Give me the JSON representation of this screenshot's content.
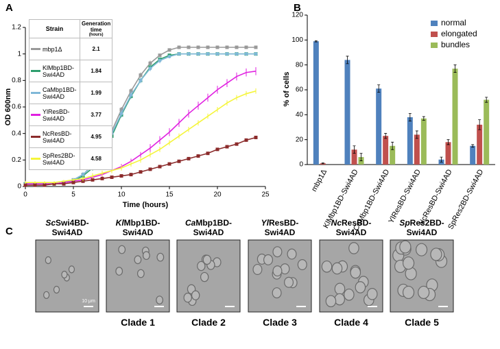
{
  "chart_data": [
    {
      "type": "line",
      "panel_label": "A",
      "xlabel": "Time (hours)",
      "ylabel": "OD 600nm",
      "x": [
        0,
        1,
        2,
        3,
        4,
        5,
        6,
        7,
        8,
        9,
        10,
        11,
        12,
        13,
        14,
        15,
        16,
        17,
        18,
        19,
        20,
        21,
        22,
        23,
        24
      ],
      "xlim": [
        0,
        25
      ],
      "xticks": [
        0,
        5,
        10,
        15,
        20,
        25
      ],
      "ylim": [
        0,
        1.2
      ],
      "yticks": [
        0,
        0.2,
        0.4,
        0.6,
        0.8,
        1,
        1.2
      ],
      "legend_header": [
        "Strain",
        "Generation time",
        "(hours)"
      ],
      "generation_times": [
        2.1,
        1.84,
        1.99,
        3.77,
        4.95,
        4.58
      ],
      "series": [
        {
          "name": "mbp1Δ",
          "color": "#999999",
          "marker": "square",
          "values": [
            0.02,
            0.02,
            0.02,
            0.02,
            0.03,
            0.05,
            0.09,
            0.16,
            0.27,
            0.42,
            0.58,
            0.72,
            0.84,
            0.93,
            0.99,
            1.03,
            1.05,
            1.05,
            1.05,
            1.05,
            1.05,
            1.05,
            1.05,
            1.05,
            1.05
          ],
          "errors": [
            0.005,
            0.005,
            0.005,
            0.005,
            0.01,
            0.01,
            0.01,
            0.02,
            0.02,
            0.02,
            0.02,
            0.02,
            0.02,
            0.02,
            0.01,
            0.01,
            0.01,
            0.01,
            0.01,
            0.01,
            0.01,
            0.01,
            0.01,
            0.01,
            0.01
          ]
        },
        {
          "name": "KlMbp1BD-Swi4AD",
          "color": "#2e9e6e",
          "marker": "square",
          "values": [
            0.02,
            0.02,
            0.02,
            0.02,
            0.03,
            0.04,
            0.08,
            0.14,
            0.24,
            0.38,
            0.54,
            0.68,
            0.8,
            0.9,
            0.96,
            0.99,
            1.0,
            1.0,
            1.0,
            1.0,
            1.0,
            1.0,
            1.0,
            1.0,
            1.0
          ],
          "errors": [
            0.005,
            0.005,
            0.005,
            0.005,
            0.01,
            0.01,
            0.01,
            0.02,
            0.02,
            0.02,
            0.02,
            0.02,
            0.02,
            0.02,
            0.01,
            0.01,
            0.01,
            0.01,
            0.01,
            0.01,
            0.01,
            0.01,
            0.01,
            0.01,
            0.01
          ]
        },
        {
          "name": "CaMbp1BD-Swi4AD",
          "color": "#7fb8d8",
          "marker": "circle",
          "values": [
            0.02,
            0.02,
            0.02,
            0.02,
            0.03,
            0.05,
            0.09,
            0.16,
            0.26,
            0.4,
            0.55,
            0.69,
            0.8,
            0.89,
            0.95,
            0.98,
            1.0,
            1.0,
            1.0,
            1.0,
            1.0,
            1.0,
            1.0,
            1.0,
            1.0
          ],
          "errors": [
            0.005,
            0.005,
            0.005,
            0.005,
            0.01,
            0.01,
            0.02,
            0.02,
            0.03,
            0.03,
            0.03,
            0.03,
            0.02,
            0.02,
            0.02,
            0.01,
            0.01,
            0.01,
            0.01,
            0.01,
            0.01,
            0.01,
            0.01,
            0.01,
            0.01
          ]
        },
        {
          "name": "YlResBD-Swi4AD",
          "color": "#e020e0",
          "marker": "none",
          "values": [
            0.02,
            0.02,
            0.02,
            0.02,
            0.03,
            0.04,
            0.05,
            0.07,
            0.09,
            0.12,
            0.15,
            0.19,
            0.24,
            0.29,
            0.35,
            0.41,
            0.48,
            0.55,
            0.61,
            0.67,
            0.73,
            0.78,
            0.83,
            0.86,
            0.87
          ],
          "errors": [
            0.01,
            0.01,
            0.01,
            0.01,
            0.01,
            0.01,
            0.01,
            0.02,
            0.02,
            0.02,
            0.02,
            0.02,
            0.02,
            0.03,
            0.03,
            0.03,
            0.03,
            0.03,
            0.03,
            0.03,
            0.03,
            0.03,
            0.03,
            0.03,
            0.03
          ]
        },
        {
          "name": "NcResBD-Swi4AD",
          "color": "#8b2b2b",
          "marker": "square",
          "values": [
            0.01,
            0.01,
            0.01,
            0.02,
            0.02,
            0.03,
            0.04,
            0.05,
            0.06,
            0.07,
            0.08,
            0.09,
            0.11,
            0.13,
            0.15,
            0.17,
            0.19,
            0.21,
            0.23,
            0.25,
            0.28,
            0.3,
            0.32,
            0.35,
            0.37
          ],
          "errors": [
            0.005,
            0.005,
            0.005,
            0.005,
            0.005,
            0.01,
            0.01,
            0.01,
            0.01,
            0.01,
            0.01,
            0.01,
            0.01,
            0.01,
            0.01,
            0.01,
            0.01,
            0.01,
            0.01,
            0.01,
            0.01,
            0.01,
            0.01,
            0.01,
            0.01
          ]
        },
        {
          "name": "SpRes2BD-Swi4AD",
          "color": "#f5f53a",
          "marker": "none",
          "values": [
            0.03,
            0.03,
            0.03,
            0.03,
            0.04,
            0.05,
            0.06,
            0.08,
            0.1,
            0.12,
            0.14,
            0.17,
            0.2,
            0.24,
            0.28,
            0.33,
            0.38,
            0.43,
            0.48,
            0.53,
            0.58,
            0.63,
            0.67,
            0.7,
            0.72
          ],
          "errors": [
            0.01,
            0.01,
            0.01,
            0.01,
            0.01,
            0.01,
            0.02,
            0.02,
            0.02,
            0.02,
            0.02,
            0.02,
            0.02,
            0.02,
            0.02,
            0.02,
            0.02,
            0.02,
            0.02,
            0.02,
            0.02,
            0.02,
            0.02,
            0.02,
            0.02
          ]
        }
      ]
    },
    {
      "type": "bar",
      "panel_label": "B",
      "ylabel": "% of cells",
      "categories": [
        "mbp1Δ",
        "KlMbp1BD-Swi4AD",
        "CaMbp1BD-Swi4AD",
        "YlResBD-Swi4AD",
        "NcResBD-Swi4AD",
        "SpRes2BD-Swi4AD"
      ],
      "ylim": [
        0,
        120
      ],
      "yticks": [
        0,
        20,
        40,
        60,
        80,
        100,
        120
      ],
      "legend": "top-right",
      "series": [
        {
          "name": "normal",
          "color": "#4f81bd",
          "values": [
            99,
            84,
            61,
            38,
            4,
            15
          ],
          "errors": [
            0.5,
            3,
            3,
            3,
            2,
            1
          ]
        },
        {
          "name": "elongated",
          "color": "#c0504d",
          "values": [
            1,
            12,
            23,
            24,
            18,
            32
          ],
          "errors": [
            0.3,
            3,
            2,
            3,
            2,
            4
          ]
        },
        {
          "name": "bundles",
          "color": "#9bbb59",
          "values": [
            null,
            6,
            15,
            37,
            77,
            52
          ],
          "errors": [
            null,
            3,
            3,
            1.5,
            3,
            2
          ]
        }
      ]
    }
  ],
  "panel_c": {
    "panel_label": "C",
    "images": [
      {
        "label": [
          "Sc",
          "Swi4BD-",
          "Swi4AD"
        ],
        "scale": "10 μm"
      },
      {
        "label": [
          "Kl",
          "Mbp1BD-",
          "Swi4AD"
        ],
        "clade": "Clade 1"
      },
      {
        "label": [
          "Ca",
          "Mbp1BD-",
          "Swi4AD"
        ],
        "clade": "Clade 2"
      },
      {
        "label": [
          "Yl",
          "ResBD-",
          "Swi4AD"
        ],
        "clade": "Clade 3"
      },
      {
        "label": [
          "Nc",
          "ResBD-",
          "Swi4AD"
        ],
        "clade": "Clade 4"
      },
      {
        "label": [
          "Sp",
          "Res2BD-",
          "Swi4AD"
        ],
        "clade": "Clade 5"
      }
    ]
  }
}
